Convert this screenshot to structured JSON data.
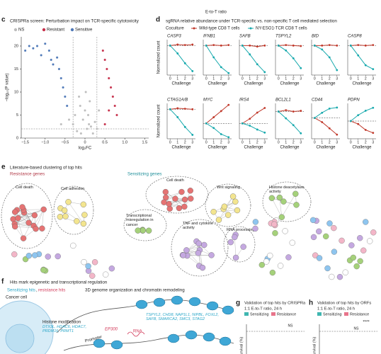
{
  "top_strip": {
    "text": "E-to-T ratio"
  },
  "panel_c": {
    "letter": "c",
    "title": "CRISPRa screen: Perturbation impact on TCR-specific cytotoxicity",
    "xlabel": "log₂FC",
    "ylabel": "−log₁₀(P value)",
    "xlim": [
      -1.6,
      1.6
    ],
    "xticks": [
      {
        "value": -1.5,
        "label": "−1.5"
      },
      {
        "value": -1,
        "label": "−1.0"
      },
      {
        "value": -0.5,
        "label": "−0.5"
      },
      0,
      {
        "value": 0.5,
        "label": "0.5"
      },
      {
        "value": 1,
        "label": "1.0"
      },
      {
        "value": 1.5,
        "label": "1.5"
      }
    ],
    "ylim": [
      0,
      22
    ],
    "yticks": [
      0,
      5,
      10,
      15,
      20
    ],
    "thresholds": {
      "x": [
        -0.3,
        0.3
      ],
      "y": 2
    },
    "series": [
      {
        "name": "NS",
        "color": "#bdbdbd",
        "x": [
          -0.1,
          0.05,
          0.1,
          -0.2,
          0.15,
          -0.05,
          0.2,
          -0.3,
          0.25,
          0,
          0.08,
          -0.12,
          0.3,
          -0.25,
          0.12,
          -0.4,
          0.35,
          -0.6,
          0.02,
          -0.15
        ],
        "y": [
          1,
          2,
          3,
          1.5,
          2.5,
          4,
          1,
          3,
          3.5,
          6,
          5,
          7,
          2,
          5,
          8,
          4,
          6,
          3,
          10,
          9
        ]
      },
      {
        "name": "Resistant",
        "color": "#c62f4a",
        "x": [
          0.45,
          0.5,
          0.55,
          0.6,
          0.65,
          0.7,
          0.75,
          0.8,
          0.5,
          0.6
        ],
        "y": [
          19,
          17,
          15,
          13,
          11,
          9,
          7,
          5,
          3,
          6
        ]
      },
      {
        "name": "Sensitive",
        "color": "#4f79b8",
        "x": [
          -1.5,
          -1.4,
          -1.3,
          -1.2,
          -1.1,
          -1,
          -0.9,
          -0.85,
          -0.8,
          -0.7,
          -0.65,
          -0.6,
          -0.55,
          -0.5,
          -0.45
        ],
        "y": [
          19,
          20,
          19.5,
          20,
          18,
          20.5,
          19,
          17,
          16,
          17.5,
          15,
          13,
          11,
          9,
          7
        ]
      }
    ]
  },
  "panel_d": {
    "letter": "d",
    "title": "sgRNA relative abundance under TCR-specific vs. non-specific T cell mediated selection",
    "legend_title": "Coculture",
    "series": [
      {
        "name": "Wild-type CD8 T cells",
        "color": "#c0392b"
      },
      {
        "name": "NY-ESO1-TCR CD8 T cells",
        "color": "#17a9ad"
      }
    ],
    "xlabel": "Challenge",
    "ylabel": "Normalized count",
    "xlim": [
      -0.4,
      3.4
    ],
    "xticks": [
      0,
      1,
      2,
      3
    ],
    "plots": [
      {
        "gene": "CASP3",
        "ylim": [
          -3,
          0.6
        ],
        "values": [
          [
            0,
            0.1,
            0.05,
            0.1
          ],
          [
            0,
            -0.8,
            -1.8,
            -2.6
          ]
        ]
      },
      {
        "gene": "IFNB1",
        "ylim": [
          -3,
          0.6
        ],
        "values": [
          [
            0,
            0.05,
            0,
            0.05
          ],
          [
            0,
            -1.2,
            -2.2,
            -2.8
          ]
        ]
      },
      {
        "gene": "SAFB",
        "ylim": [
          -3,
          0.6
        ],
        "values": [
          [
            0,
            0,
            -0.1,
            0
          ],
          [
            0,
            -0.9,
            -1.9,
            -2.7
          ]
        ]
      },
      {
        "gene": "TSPYL2",
        "ylim": [
          -3,
          0.6
        ],
        "values": [
          [
            0,
            0.05,
            0,
            -0.05
          ],
          [
            0,
            -0.5,
            -1.3,
            -2.3
          ]
        ]
      },
      {
        "gene": "BID",
        "ylim": [
          -3,
          0.6
        ],
        "values": [
          [
            0,
            0,
            0.05,
            0
          ],
          [
            0,
            -0.4,
            -1.2,
            -2.5
          ]
        ]
      },
      {
        "gene": "CASP8",
        "ylim": [
          -3,
          0.6
        ],
        "values": [
          [
            0,
            0.05,
            0,
            0.05
          ],
          [
            0,
            -1,
            -2,
            -2.4
          ]
        ]
      },
      {
        "gene": "CTAG1A/B",
        "ylim": [
          -3,
          0.6
        ],
        "values": [
          [
            0,
            0.1,
            0.05,
            0
          ],
          [
            0,
            -0.8,
            -1.8,
            -2.6
          ]
        ]
      },
      {
        "gene": "MYC",
        "ylim": [
          -2,
          2.6
        ],
        "values": [
          [
            0,
            0.8,
            1.6,
            2.4
          ],
          [
            0,
            -0.6,
            -1.4,
            -1.8
          ]
        ]
      },
      {
        "gene": "IRS4",
        "ylim": [
          -2,
          2.6
        ],
        "values": [
          [
            0,
            0.6,
            1.4,
            2
          ],
          [
            0,
            -0.3,
            -0.8,
            -1.2
          ]
        ]
      },
      {
        "gene": "BCL2L1",
        "ylim": [
          -2,
          0.6
        ],
        "values": [
          [
            0,
            0.1,
            0,
            0.05
          ],
          [
            0,
            -0.5,
            -1,
            -1.6
          ]
        ]
      },
      {
        "gene": "CD44",
        "ylim": [
          -2,
          1.4
        ],
        "values": [
          [
            0,
            -0.4,
            -1,
            -1.6
          ],
          [
            0,
            0.5,
            0.9,
            1
          ]
        ]
      },
      {
        "gene": "PDPN",
        "ylim": [
          -1.2,
          1.2
        ],
        "values": [
          [
            0,
            -0.2,
            -0.6,
            -0.8
          ],
          [
            0,
            0.4,
            0.7,
            0.9
          ]
        ]
      }
    ]
  },
  "panel_e": {
    "letter": "e",
    "title": "Literature-based clustering of top hits",
    "groups": [
      "Resistance genes",
      "Sensitizing genes"
    ],
    "clusters": [
      "Cell death",
      "Cell adhesion",
      "Cell death",
      "Wnt signaling",
      "Histone deacetylase activity",
      "Transcriptional misregulation in cancer",
      "TNF and cytokine activity",
      "RNA processing"
    ]
  },
  "panel_f": {
    "letter": "f",
    "title": "Hits mark epigenetic and transcriptional regulation",
    "legend_sensitizing": "Sensitizing hits",
    "legend_separator": ",",
    "legend_resistance": "resistance hits",
    "cancer_cell": "Cancer cell",
    "chromatin_title": "3D genome organization and chromatin remodeling",
    "chromatin_genes": "TSPYL2, CHD8, NAP1L1, NIPBL, FOXL2, SAFB, SMARCA2, SMC3, STAG2",
    "histone_title": "Histone modification",
    "histone_genes": "DTX3L, HDAC6, HDAC7, PRDM16, PRMT1",
    "promoter": "Promoter",
    "extra_gene": "EP300",
    "rna": "RNA"
  },
  "panel_g": {
    "letter": "g",
    "title": "Validation of top hits by CRISPRa",
    "subtitle": "1:1 E-to-T ratio, 24 h",
    "legend": [
      "Sensitizing",
      "Resistance"
    ],
    "ylabel": "survival (%)",
    "annotation": "NS"
  },
  "panel_h": {
    "letter": "h",
    "title": "Validation of top hits by ORFs",
    "subtitle": "1:1 E-to-T ratio, 24 h",
    "legend": [
      "Sensitizing",
      "Resistance"
    ],
    "ylabel": "survival (%)",
    "annotations": [
      "NS",
      "****"
    ]
  }
}
